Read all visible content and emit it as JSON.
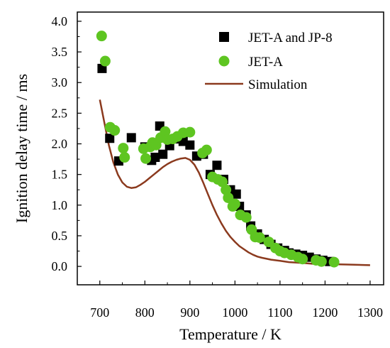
{
  "chart_data": {
    "type": "scatter",
    "title": "",
    "xlabel": "Temperature / K",
    "ylabel": "Ignition delay time / ms",
    "xlim": [
      650,
      1330
    ],
    "ylim": [
      -0.3,
      4.15
    ],
    "xticks": [
      700,
      800,
      900,
      1000,
      1100,
      1200,
      1300
    ],
    "yticks": [
      0.0,
      0.5,
      1.0,
      1.5,
      2.0,
      2.5,
      3.0,
      3.5,
      4.0
    ],
    "xtick_labels": [
      "700",
      "800",
      "900",
      "1000",
      "1100",
      "1200",
      "1300"
    ],
    "ytick_labels": [
      "0.0",
      "0.5",
      "1.0",
      "1.5",
      "2.0",
      "2.5",
      "3.0",
      "3.5",
      "4.0"
    ],
    "grid": false,
    "legend_position": "top-right",
    "series": [
      {
        "name": "JET-A and JP-8",
        "type": "scatter",
        "marker": "square",
        "color": "#000000",
        "x": [
          705,
          722,
          742,
          770,
          800,
          815,
          823,
          833,
          840,
          855,
          870,
          885,
          900,
          915,
          930,
          945,
          960,
          975,
          990,
          1003,
          1010,
          1025,
          1035,
          1050,
          1065,
          1080,
          1095,
          1110,
          1120,
          1135,
          1150,
          1165,
          1180,
          1195,
          1210
        ],
        "y": [
          3.23,
          2.09,
          1.72,
          2.1,
          1.95,
          1.73,
          1.78,
          2.29,
          1.83,
          1.97,
          2.08,
          2.04,
          1.98,
          1.8,
          1.83,
          1.5,
          1.65,
          1.42,
          1.25,
          1.18,
          0.98,
          0.84,
          0.66,
          0.53,
          0.44,
          0.36,
          0.3,
          0.26,
          0.22,
          0.2,
          0.18,
          0.15,
          0.12,
          0.1,
          0.08
        ]
      },
      {
        "name": "JET-A",
        "type": "scatter",
        "marker": "circle",
        "color": "#5ec521",
        "x": [
          704,
          712,
          723,
          733,
          752,
          755,
          797,
          802,
          812,
          817,
          825,
          835,
          845,
          850,
          862,
          872,
          885,
          900,
          928,
          937,
          950,
          962,
          972,
          980,
          985,
          995,
          1000,
          1012,
          1025,
          1037,
          1045,
          1055,
          1075,
          1090,
          1100,
          1110,
          1125,
          1140,
          1150,
          1180,
          1192,
          1220
        ],
        "y": [
          3.76,
          3.35,
          2.27,
          2.22,
          1.93,
          1.78,
          1.92,
          1.76,
          1.95,
          2.02,
          1.98,
          2.1,
          2.2,
          2.07,
          2.08,
          2.12,
          2.18,
          2.19,
          1.85,
          1.9,
          1.46,
          1.42,
          1.38,
          1.25,
          1.12,
          0.98,
          1.02,
          0.84,
          0.8,
          0.6,
          0.48,
          0.47,
          0.4,
          0.3,
          0.25,
          0.22,
          0.19,
          0.15,
          0.12,
          0.1,
          0.08,
          0.07
        ]
      },
      {
        "name": "Simulation",
        "type": "line",
        "color": "#8b3a1e",
        "x": [
          700,
          710,
          720,
          730,
          740,
          750,
          760,
          770,
          780,
          790,
          800,
          810,
          820,
          830,
          840,
          850,
          860,
          870,
          880,
          890,
          900,
          910,
          920,
          930,
          940,
          950,
          960,
          970,
          980,
          990,
          1000,
          1010,
          1020,
          1030,
          1040,
          1050,
          1060,
          1080,
          1100,
          1120,
          1140,
          1160,
          1180,
          1200,
          1250,
          1300
        ],
        "y": [
          2.72,
          2.35,
          1.98,
          1.7,
          1.5,
          1.37,
          1.3,
          1.28,
          1.29,
          1.33,
          1.38,
          1.44,
          1.5,
          1.56,
          1.62,
          1.67,
          1.71,
          1.74,
          1.76,
          1.77,
          1.74,
          1.66,
          1.53,
          1.36,
          1.18,
          1.0,
          0.84,
          0.7,
          0.58,
          0.48,
          0.4,
          0.33,
          0.28,
          0.23,
          0.19,
          0.16,
          0.14,
          0.11,
          0.09,
          0.07,
          0.06,
          0.05,
          0.04,
          0.04,
          0.03,
          0.02
        ]
      }
    ]
  }
}
